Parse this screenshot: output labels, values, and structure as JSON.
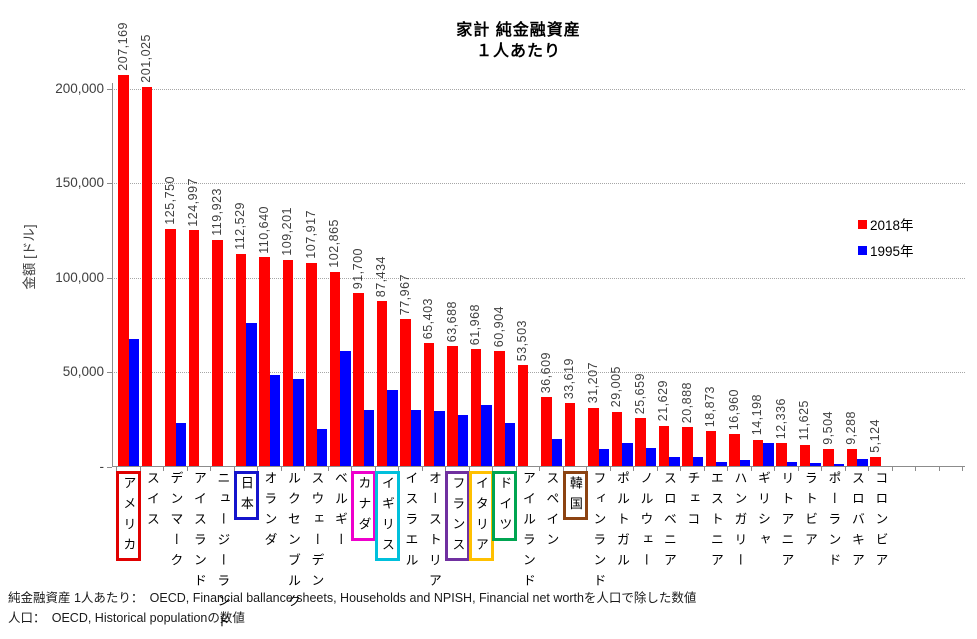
{
  "page": {
    "background": "#FFFFFF"
  },
  "chart_data": {
    "type": "bar",
    "title_line1": "家計 純金融資産",
    "title_line2": "１人あたり",
    "ylabel": "金額 [ドル]",
    "grid": "horizontal dotted",
    "legend_position": "right",
    "ylim": [
      0,
      212000
    ],
    "yticks": [
      {
        "value": 0,
        "label": "-"
      },
      {
        "value": 50000,
        "label": "50,000"
      },
      {
        "value": 100000,
        "label": "100,000"
      },
      {
        "value": 150000,
        "label": "150,000"
      },
      {
        "value": 200000,
        "label": "200,000"
      }
    ],
    "legend": [
      {
        "name": "2018年",
        "color": "#FF0000"
      },
      {
        "name": "1995年",
        "color": "#0000FF"
      }
    ],
    "categories": [
      "アメリカ",
      "スイス",
      "デンマーク",
      "アイスランド",
      "ニュージーランド",
      "日本",
      "オランダ",
      "ルクセンブルク",
      "スウェーデン",
      "ベルギー",
      "カナダ",
      "イギリス",
      "イスラエル",
      "オーストリア",
      "フランス",
      "イタリア",
      "ドイツ",
      "アイルランド",
      "スペイン",
      "韓国",
      "フィンランド",
      "ポルトガル",
      "ノルウェー",
      "スロベニア",
      "チェコ",
      "エストニア",
      "ハンガリー",
      "ギリシャ",
      "リトアニア",
      "ラトビア",
      "ポーランド",
      "スロバキア",
      "コロンビア"
    ],
    "series": [
      {
        "name": "2018年",
        "color": "#FF0000",
        "values": [
          207169,
          201025,
          125750,
          124997,
          119923,
          112529,
          110640,
          109201,
          107917,
          102865,
          91700,
          87434,
          77967,
          65403,
          63688,
          61968,
          60904,
          53503,
          36609,
          33619,
          31207,
          29005,
          25659,
          21629,
          20888,
          18873,
          16960,
          14198,
          12336,
          11625,
          9504,
          9288,
          5124
        ],
        "value_labels": [
          "207,169",
          "201,025",
          "125,750",
          "124,997",
          "119,923",
          "112,529",
          "110,640",
          "109,201",
          "107,917",
          "102,865",
          "91,700",
          "87,434",
          "77,967",
          "65,403",
          "63,688",
          "61,968",
          "60,904",
          "53,503",
          "36,609",
          "33,619",
          "31,207",
          "29,005",
          "25,659",
          "21,629",
          "20,888",
          "18,873",
          "16,960",
          "14,198",
          "12,336",
          "11,625",
          "9,504",
          "9,288",
          "5,124"
        ]
      },
      {
        "name": "1995年",
        "color": "#0000FF",
        "values": [
          67500,
          null,
          23200,
          null,
          null,
          76100,
          48600,
          46500,
          19700,
          61000,
          29900,
          40700,
          29700,
          29300,
          27400,
          32300,
          23000,
          null,
          14800,
          null,
          9300,
          12200,
          9900,
          5000,
          4800,
          2200,
          3300,
          12300,
          2300,
          2000,
          1400,
          4000,
          null
        ],
        "value_labels": null
      }
    ],
    "highlighted_categories": [
      {
        "index": 0,
        "label": "アメリカ",
        "box_color": "#E00000"
      },
      {
        "index": 5,
        "label": "日本",
        "box_color": "#1414CC"
      },
      {
        "index": 10,
        "label": "カナダ",
        "box_color": "#EE00CC"
      },
      {
        "index": 11,
        "label": "イギリス",
        "box_color": "#00C0DC"
      },
      {
        "index": 14,
        "label": "フランス",
        "box_color": "#7030A0"
      },
      {
        "index": 15,
        "label": "イタリア",
        "box_color": "#FFC000"
      },
      {
        "index": 16,
        "label": "ドイツ",
        "box_color": "#00A551"
      },
      {
        "index": 19,
        "label": "韓国",
        "box_color": "#8C4312"
      }
    ]
  },
  "footnotes": {
    "line1": "純金融資産 1人あたり：　OECD, Financial ballance sheets, Households and NPISH, Financial net worthを人口で除した数値",
    "line2": "人口：　OECD, Historical populationの数値"
  }
}
